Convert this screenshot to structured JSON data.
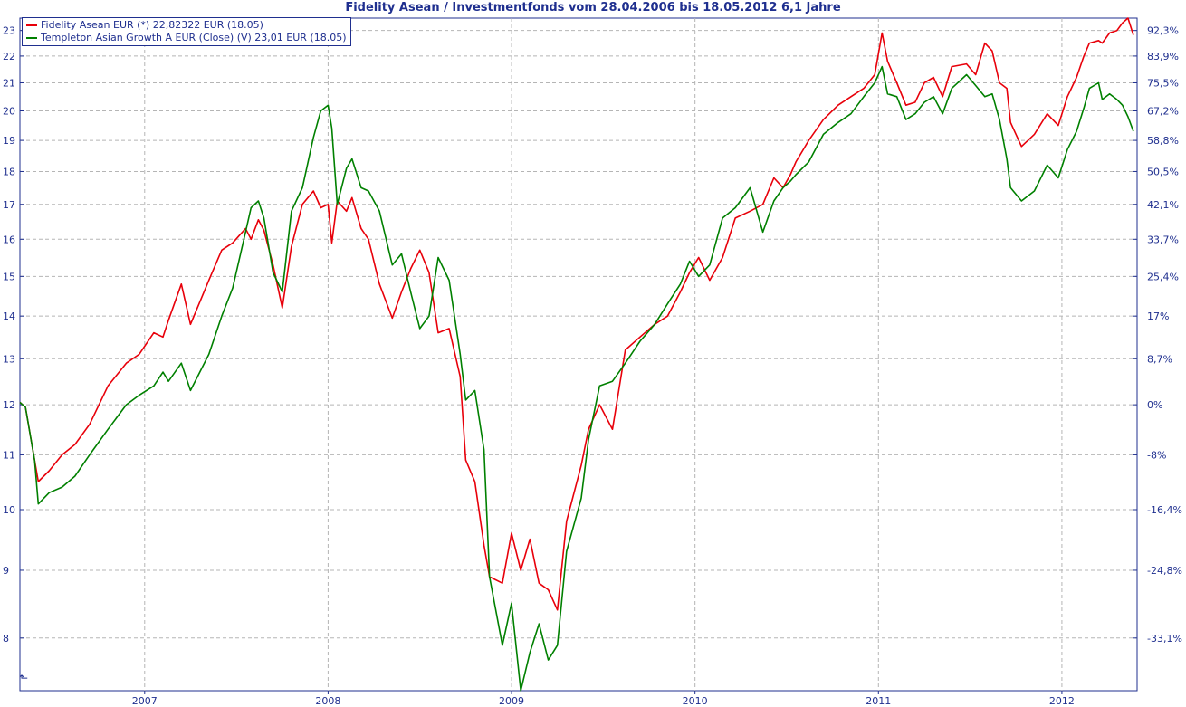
{
  "chart_data": {
    "type": "line",
    "title": "Fidelity Asean / Investmentfonds vom 28.04.2006 bis 18.05.2012 6,1 Jahre",
    "xlabel": "",
    "ylabel": "",
    "y_scale": "log",
    "ylim": [
      7.3,
      23.5
    ],
    "xlim": [
      2006.32,
      2012.41
    ],
    "grid": true,
    "legend_position": "top-left",
    "x_ticks": [
      "2007",
      "2008",
      "2009",
      "2010",
      "2011",
      "2012"
    ],
    "x_tick_values": [
      2007,
      2008,
      2009,
      2010,
      2011,
      2012
    ],
    "y_left_ticks": [
      8,
      9,
      10,
      11,
      12,
      13,
      14,
      15,
      16,
      17,
      18,
      19,
      20,
      21,
      22,
      23
    ],
    "y_right_ticks": [
      {
        "label": "-33,1%",
        "value": 8.0
      },
      {
        "label": "-24,8%",
        "value": 9.0
      },
      {
        "label": "-16,4%",
        "value": 10.0
      },
      {
        "label": "-8%",
        "value": 11.0
      },
      {
        "label": "0%",
        "value": 12.0
      },
      {
        "label": "8,7%",
        "value": 13.0
      },
      {
        "label": "17%",
        "value": 14.0
      },
      {
        "label": "25,4%",
        "value": 15.0
      },
      {
        "label": "33,7%",
        "value": 16.0
      },
      {
        "label": "42,1%",
        "value": 17.0
      },
      {
        "label": "50,5%",
        "value": 18.0
      },
      {
        "label": "58,8%",
        "value": 19.0
      },
      {
        "label": "67,2%",
        "value": 20.0
      },
      {
        "label": "75,5%",
        "value": 21.0
      },
      {
        "label": "83,9%",
        "value": 22.0
      },
      {
        "label": "92,3%",
        "value": 23.0
      }
    ],
    "series": [
      {
        "name": "Fidelity Asean EUR (*) 22,82322 EUR (18.05)",
        "color": "#e8000a",
        "x": [
          2006.32,
          2006.35,
          2006.4,
          2006.42,
          2006.48,
          2006.55,
          2006.62,
          2006.7,
          2006.8,
          2006.9,
          2006.97,
          2007.05,
          2007.1,
          2007.13,
          2007.2,
          2007.25,
          2007.35,
          2007.42,
          2007.48,
          2007.55,
          2007.58,
          2007.62,
          2007.65,
          2007.7,
          2007.75,
          2007.8,
          2007.86,
          2007.92,
          2007.96,
          2008.0,
          2008.02,
          2008.05,
          2008.1,
          2008.13,
          2008.18,
          2008.22,
          2008.28,
          2008.35,
          2008.4,
          2008.45,
          2008.5,
          2008.55,
          2008.6,
          2008.66,
          2008.72,
          2008.75,
          2008.8,
          2008.85,
          2008.88,
          2008.95,
          2009.0,
          2009.05,
          2009.1,
          2009.15,
          2009.2,
          2009.25,
          2009.3,
          2009.38,
          2009.42,
          2009.48,
          2009.55,
          2009.62,
          2009.7,
          2009.78,
          2009.85,
          2009.92,
          2009.97,
          2010.02,
          2010.08,
          2010.15,
          2010.22,
          2010.3,
          2010.37,
          2010.43,
          2010.48,
          2010.52,
          2010.55,
          2010.62,
          2010.7,
          2010.78,
          2010.85,
          2010.92,
          2010.98,
          2011.02,
          2011.05,
          2011.1,
          2011.15,
          2011.2,
          2011.25,
          2011.3,
          2011.35,
          2011.4,
          2011.48,
          2011.53,
          2011.58,
          2011.62,
          2011.66,
          2011.7,
          2011.72,
          2011.78,
          2011.85,
          2011.92,
          2011.98,
          2012.03,
          2012.08,
          2012.12,
          2012.15,
          2012.2,
          2012.22,
          2012.26,
          2012.3,
          2012.33,
          2012.36,
          2012.39
        ],
        "values": [
          12.05,
          11.95,
          10.9,
          10.5,
          10.7,
          11.0,
          11.2,
          11.6,
          12.4,
          12.9,
          13.1,
          13.6,
          13.5,
          13.9,
          14.8,
          13.8,
          14.9,
          15.7,
          15.9,
          16.3,
          16.0,
          16.55,
          16.25,
          15.3,
          14.2,
          15.8,
          17.0,
          17.4,
          16.9,
          17.0,
          15.9,
          17.1,
          16.8,
          17.2,
          16.3,
          16.0,
          14.8,
          13.95,
          14.6,
          15.2,
          15.7,
          15.1,
          13.6,
          13.7,
          12.6,
          10.9,
          10.5,
          9.4,
          8.9,
          8.8,
          9.6,
          9.0,
          9.5,
          8.8,
          8.7,
          8.4,
          9.8,
          10.8,
          11.5,
          12.0,
          11.5,
          13.2,
          13.5,
          13.8,
          14.0,
          14.6,
          15.1,
          15.5,
          14.9,
          15.5,
          16.6,
          16.8,
          17.0,
          17.8,
          17.5,
          17.9,
          18.3,
          19.0,
          19.7,
          20.2,
          20.5,
          20.8,
          21.3,
          22.9,
          21.8,
          21.0,
          20.2,
          20.3,
          21.0,
          21.2,
          20.5,
          21.6,
          21.7,
          21.3,
          22.5,
          22.2,
          21.0,
          20.8,
          19.6,
          18.8,
          19.2,
          19.9,
          19.5,
          20.5,
          21.2,
          22.0,
          22.5,
          22.6,
          22.5,
          22.9,
          23.0,
          23.3,
          23.5,
          22.82
        ]
      },
      {
        "name": "Templeton Asian Growth A EUR (Close) (V) 23,01 EUR (18.05)",
        "color": "#008000",
        "x": [
          2006.32,
          2006.35,
          2006.4,
          2006.42,
          2006.48,
          2006.55,
          2006.62,
          2006.7,
          2006.8,
          2006.9,
          2006.97,
          2007.05,
          2007.1,
          2007.13,
          2007.2,
          2007.25,
          2007.35,
          2007.42,
          2007.48,
          2007.55,
          2007.58,
          2007.62,
          2007.65,
          2007.7,
          2007.75,
          2007.8,
          2007.86,
          2007.92,
          2007.96,
          2008.0,
          2008.02,
          2008.05,
          2008.1,
          2008.13,
          2008.18,
          2008.22,
          2008.28,
          2008.35,
          2008.4,
          2008.45,
          2008.5,
          2008.55,
          2008.6,
          2008.66,
          2008.72,
          2008.75,
          2008.8,
          2008.85,
          2008.88,
          2008.95,
          2009.0,
          2009.05,
          2009.1,
          2009.15,
          2009.2,
          2009.25,
          2009.3,
          2009.38,
          2009.42,
          2009.48,
          2009.55,
          2009.62,
          2009.7,
          2009.78,
          2009.85,
          2009.92,
          2009.97,
          2010.02,
          2010.08,
          2010.15,
          2010.22,
          2010.3,
          2010.37,
          2010.43,
          2010.48,
          2010.52,
          2010.55,
          2010.62,
          2010.7,
          2010.78,
          2010.85,
          2010.92,
          2010.98,
          2011.02,
          2011.05,
          2011.1,
          2011.15,
          2011.2,
          2011.25,
          2011.3,
          2011.35,
          2011.4,
          2011.48,
          2011.53,
          2011.58,
          2011.62,
          2011.66,
          2011.7,
          2011.72,
          2011.78,
          2011.85,
          2011.92,
          2011.98,
          2012.03,
          2012.08,
          2012.12,
          2012.15,
          2012.2,
          2012.22,
          2012.26,
          2012.3,
          2012.33,
          2012.36,
          2012.39
        ],
        "values": [
          12.05,
          11.95,
          10.9,
          10.1,
          10.3,
          10.4,
          10.6,
          11.0,
          11.5,
          12.0,
          12.2,
          12.4,
          12.7,
          12.5,
          12.9,
          12.3,
          13.1,
          14.0,
          14.7,
          16.2,
          16.9,
          17.1,
          16.6,
          15.1,
          14.6,
          16.8,
          17.5,
          19.1,
          20.0,
          20.2,
          19.4,
          17.0,
          18.1,
          18.4,
          17.5,
          17.4,
          16.8,
          15.3,
          15.6,
          14.6,
          13.7,
          14.0,
          15.5,
          14.9,
          13.1,
          12.1,
          12.3,
          11.1,
          8.9,
          7.9,
          8.5,
          7.3,
          7.8,
          8.2,
          7.7,
          7.9,
          9.3,
          10.2,
          11.3,
          12.4,
          12.5,
          12.9,
          13.4,
          13.8,
          14.3,
          14.8,
          15.4,
          15.0,
          15.3,
          16.6,
          16.9,
          17.5,
          16.2,
          17.1,
          17.5,
          17.7,
          17.9,
          18.3,
          19.2,
          19.6,
          19.9,
          20.5,
          21.0,
          21.6,
          20.6,
          20.5,
          19.7,
          19.9,
          20.3,
          20.5,
          19.9,
          20.8,
          21.3,
          20.9,
          20.5,
          20.6,
          19.7,
          18.4,
          17.5,
          17.1,
          17.4,
          18.2,
          17.8,
          18.7,
          19.3,
          20.1,
          20.8,
          21.0,
          20.4,
          20.6,
          20.4,
          20.2,
          19.8,
          19.3
        ]
      }
    ]
  }
}
